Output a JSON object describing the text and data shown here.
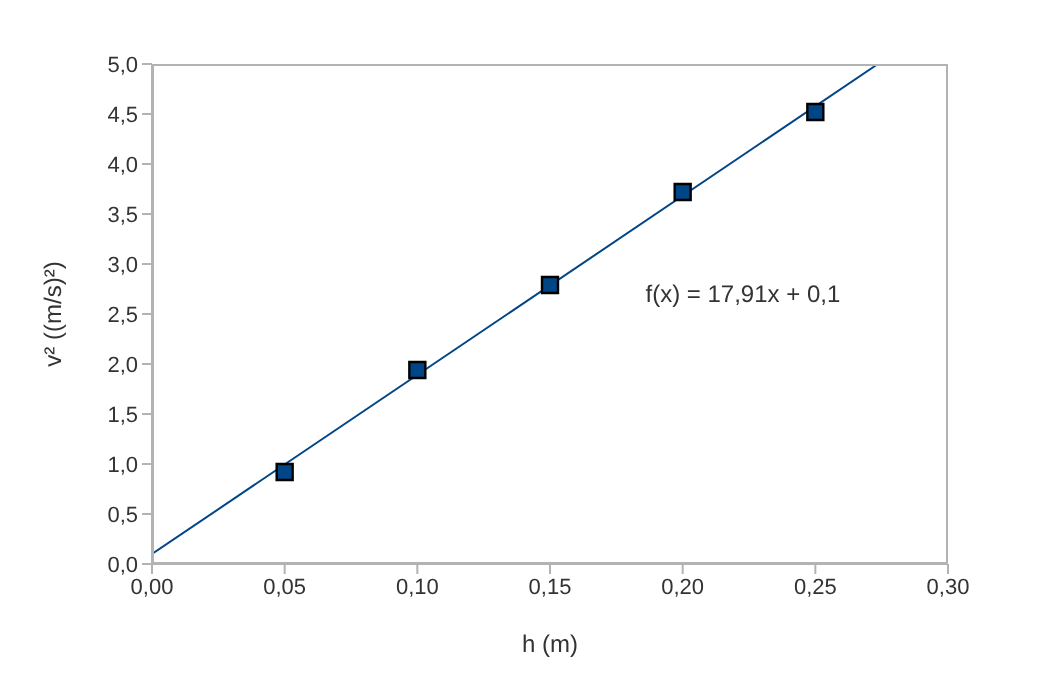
{
  "chart_data": {
    "type": "scatter",
    "xlabel": "h (m)",
    "ylabel": "v² ((m/s)²)",
    "xlim": [
      0,
      0.3
    ],
    "ylim": [
      0,
      5
    ],
    "xticks": [
      {
        "value": 0,
        "label": "0,00"
      },
      {
        "value": 0.05,
        "label": "0,05"
      },
      {
        "value": 0.1,
        "label": "0,10"
      },
      {
        "value": 0.15,
        "label": "0,15"
      },
      {
        "value": 0.2,
        "label": "0,20"
      },
      {
        "value": 0.25,
        "label": "0,25"
      },
      {
        "value": 0.3,
        "label": "0,30"
      }
    ],
    "yticks": [
      {
        "value": 0,
        "label": "0,0"
      },
      {
        "value": 0.5,
        "label": "0,5"
      },
      {
        "value": 1,
        "label": "1,0"
      },
      {
        "value": 1.5,
        "label": "1,5"
      },
      {
        "value": 2,
        "label": "2,0"
      },
      {
        "value": 2.5,
        "label": "2,5"
      },
      {
        "value": 3,
        "label": "3,0"
      },
      {
        "value": 3.5,
        "label": "3,5"
      },
      {
        "value": 4,
        "label": "4,0"
      },
      {
        "value": 4.5,
        "label": "4,5"
      },
      {
        "value": 5,
        "label": "5,0"
      }
    ],
    "grid": false,
    "series": [
      {
        "type": "line",
        "color": "#004586",
        "x": [
          0,
          0.2736
        ],
        "values": [
          0.1,
          5.0
        ],
        "marker": "none",
        "line_style": "solid"
      },
      {
        "color": "#004586",
        "x": [
          0.05,
          0.1,
          0.15,
          0.2,
          0.25
        ],
        "values": [
          0.92,
          1.94,
          2.79,
          3.72,
          4.52
        ],
        "marker": "square"
      }
    ],
    "annotations": [
      "f(x) = 17,91x + 0,1"
    ]
  }
}
